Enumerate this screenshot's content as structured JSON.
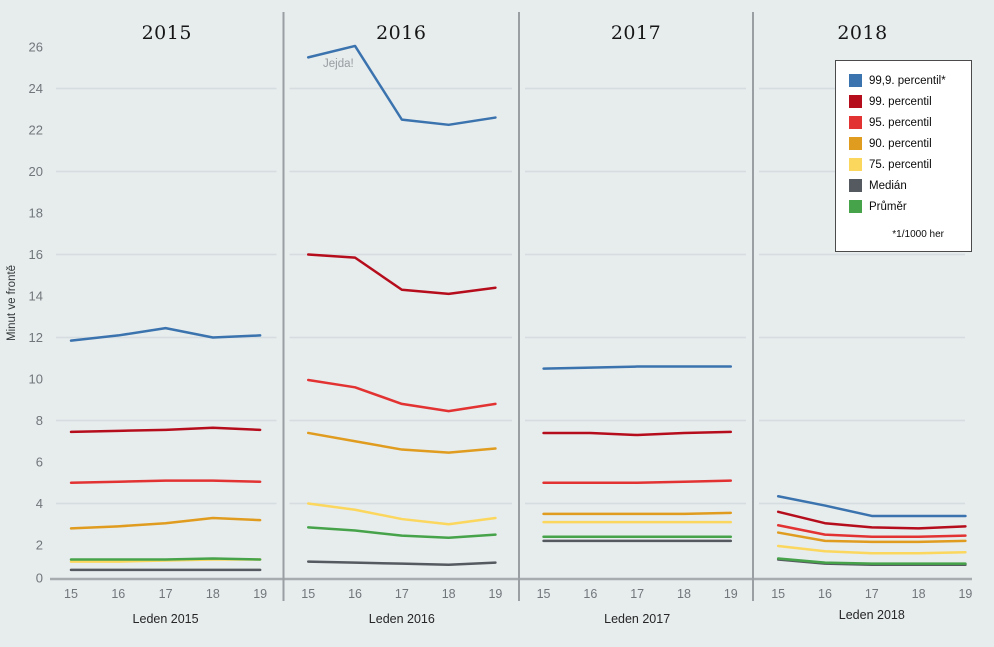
{
  "chart_data": {
    "type": "line",
    "title": "",
    "ylabel": "Minut ve frontě",
    "xlabel": "",
    "ylim": [
      0,
      26.5
    ],
    "y_ticks": [
      0,
      2,
      4,
      6,
      8,
      10,
      12,
      14,
      16,
      18,
      20,
      22,
      24,
      26
    ],
    "grid_ticks": [
      4,
      8,
      12,
      16,
      20,
      24
    ],
    "x_days": [
      "15",
      "16",
      "17",
      "18",
      "19"
    ],
    "annotation": "Jejda!",
    "legend_note": "*1/1000 her",
    "legend_position": "top-right",
    "legend": [
      {
        "key": "p999",
        "label": "99,9. percentil*",
        "color": "#3b73ae"
      },
      {
        "key": "p99",
        "label": "99. percentil",
        "color": "#b60d1c"
      },
      {
        "key": "p95",
        "label": "95. percentil",
        "color": "#e23232"
      },
      {
        "key": "p90",
        "label": "90. percentil",
        "color": "#e09c1f"
      },
      {
        "key": "p75",
        "label": "75. percentil",
        "color": "#fbd75e"
      },
      {
        "key": "median",
        "label": "Medián",
        "color": "#555a60"
      },
      {
        "key": "mean",
        "label": "Průměr",
        "color": "#46a34a"
      }
    ],
    "panels": [
      {
        "title": "2015",
        "caption": "Leden 2015",
        "values": {
          "p999": [
            11.85,
            12.1,
            12.45,
            12.0,
            12.1
          ],
          "p99": [
            7.45,
            7.5,
            7.55,
            7.65,
            7.55
          ],
          "p95": [
            5.0,
            5.05,
            5.1,
            5.1,
            5.05
          ],
          "p90": [
            2.8,
            2.9,
            3.05,
            3.3,
            3.2
          ],
          "p75": [
            1.2,
            1.2,
            1.25,
            1.3,
            1.3
          ],
          "median": [
            0.8,
            0.8,
            0.8,
            0.8,
            0.8
          ],
          "mean": [
            1.3,
            1.3,
            1.3,
            1.35,
            1.3
          ]
        }
      },
      {
        "title": "2016",
        "caption": "Leden 2016",
        "values": {
          "p999": [
            25.5,
            26.05,
            22.5,
            22.25,
            22.6
          ],
          "p99": [
            16.0,
            15.85,
            14.3,
            14.1,
            14.4
          ],
          "p95": [
            9.95,
            9.6,
            8.8,
            8.45,
            8.8
          ],
          "p90": [
            7.4,
            7.0,
            6.6,
            6.45,
            6.65
          ],
          "p75": [
            4.0,
            3.7,
            3.25,
            3.0,
            3.3
          ],
          "median": [
            1.2,
            1.15,
            1.1,
            1.05,
            1.15
          ],
          "mean": [
            2.85,
            2.7,
            2.45,
            2.35,
            2.5
          ]
        }
      },
      {
        "title": "2017",
        "caption": "Leden 2017",
        "values": {
          "p999": [
            10.5,
            10.55,
            10.6,
            10.6,
            10.6
          ],
          "p99": [
            7.4,
            7.4,
            7.3,
            7.4,
            7.45
          ],
          "p95": [
            5.0,
            5.0,
            5.0,
            5.05,
            5.1
          ],
          "p90": [
            3.5,
            3.5,
            3.5,
            3.5,
            3.55
          ],
          "p75": [
            3.1,
            3.1,
            3.1,
            3.1,
            3.1
          ],
          "median": [
            2.2,
            2.2,
            2.2,
            2.2,
            2.2
          ],
          "mean": [
            2.4,
            2.4,
            2.4,
            2.4,
            2.4
          ]
        }
      },
      {
        "title": "2018",
        "caption": "Leden 2018",
        "values": {
          "p999": [
            4.35,
            3.9,
            3.4,
            3.4,
            3.4
          ],
          "p99": [
            3.6,
            3.05,
            2.85,
            2.8,
            2.9
          ],
          "p95": [
            2.95,
            2.5,
            2.4,
            2.4,
            2.45
          ],
          "p90": [
            2.6,
            2.2,
            2.15,
            2.15,
            2.2
          ],
          "p75": [
            1.95,
            1.7,
            1.6,
            1.6,
            1.65
          ],
          "median": [
            1.3,
            1.1,
            1.05,
            1.05,
            1.05
          ],
          "mean": [
            1.35,
            1.15,
            1.1,
            1.1,
            1.1
          ]
        }
      }
    ],
    "colors": {
      "background": "#e7eced",
      "gridline": "#d6dde0",
      "divider": "#999fa2",
      "axis_line": "#a7acaf",
      "tick_label": "#70777b",
      "annotation": "#979da0",
      "legend_border": "#4b4b4b",
      "legend_background": "#ffffff"
    }
  }
}
